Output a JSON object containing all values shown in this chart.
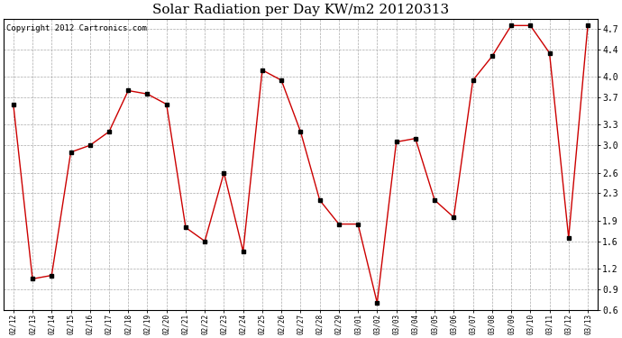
{
  "title": "Solar Radiation per Day KW/m2 20120313",
  "copyright": "Copyright 2012 Cartronics.com",
  "dates": [
    "02/12",
    "02/13",
    "02/14",
    "02/15",
    "02/16",
    "02/17",
    "02/18",
    "02/19",
    "02/20",
    "02/21",
    "02/22",
    "02/23",
    "02/24",
    "02/25",
    "02/26",
    "02/27",
    "02/28",
    "02/29",
    "03/01",
    "03/02",
    "03/03",
    "03/04",
    "03/05",
    "03/06",
    "03/07",
    "03/08",
    "03/09",
    "03/10",
    "03/11",
    "03/12",
    "03/13"
  ],
  "values": [
    3.6,
    1.05,
    1.1,
    2.9,
    3.0,
    3.2,
    3.8,
    3.75,
    3.6,
    1.8,
    1.6,
    2.6,
    1.45,
    4.1,
    3.95,
    3.2,
    2.2,
    1.85,
    1.85,
    0.7,
    3.05,
    3.1,
    2.2,
    1.95,
    3.95,
    4.3,
    4.75,
    4.75,
    4.35,
    1.65,
    4.75
  ],
  "line_color": "#cc0000",
  "marker_color": "#000000",
  "bg_color": "#ffffff",
  "grid_color": "#aaaaaa",
  "ylim": [
    0.6,
    4.85
  ],
  "yticks": [
    0.6,
    0.9,
    1.2,
    1.6,
    1.9,
    2.3,
    2.6,
    3.0,
    3.3,
    3.7,
    4.0,
    4.4,
    4.7
  ],
  "title_fontsize": 11,
  "copyright_fontsize": 6.5
}
